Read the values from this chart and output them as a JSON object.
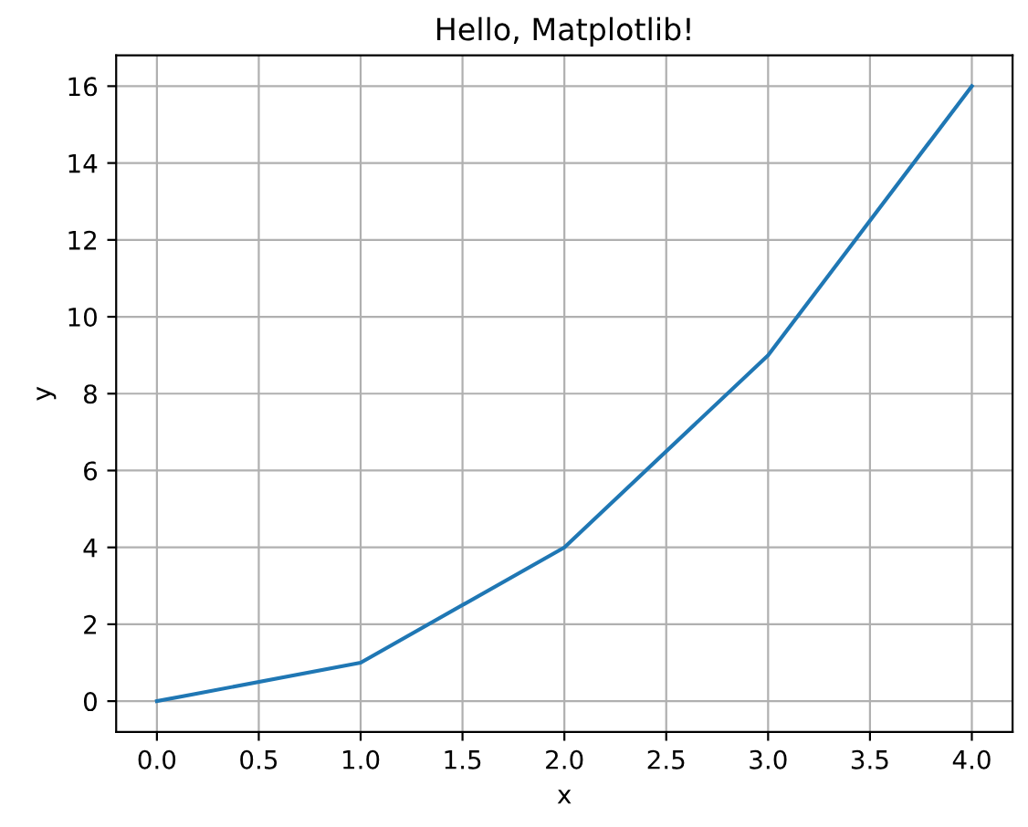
{
  "chart_data": {
    "type": "line",
    "title": "Hello, Matplotlib!",
    "xlabel": "x",
    "ylabel": "y",
    "x": [
      0,
      1,
      2,
      3,
      4
    ],
    "series": [
      {
        "color": "#1f77b4",
        "values": [
          0,
          1,
          4,
          9,
          16
        ]
      }
    ],
    "xlim": [
      -0.2,
      4.2
    ],
    "ylim": [
      -0.8,
      16.8
    ],
    "xticks": [
      {
        "value": 0,
        "label": "0.0"
      },
      {
        "value": 0.5,
        "label": "0.5"
      },
      {
        "value": 1,
        "label": "1.0"
      },
      {
        "value": 1.5,
        "label": "1.5"
      },
      {
        "value": 2,
        "label": "2.0"
      },
      {
        "value": 2.5,
        "label": "2.5"
      },
      {
        "value": 3,
        "label": "3.0"
      },
      {
        "value": 3.5,
        "label": "3.5"
      },
      {
        "value": 4,
        "label": "4.0"
      }
    ],
    "yticks": [
      0,
      2,
      4,
      6,
      8,
      10,
      12,
      14,
      16
    ],
    "grid": true,
    "legend": false
  }
}
